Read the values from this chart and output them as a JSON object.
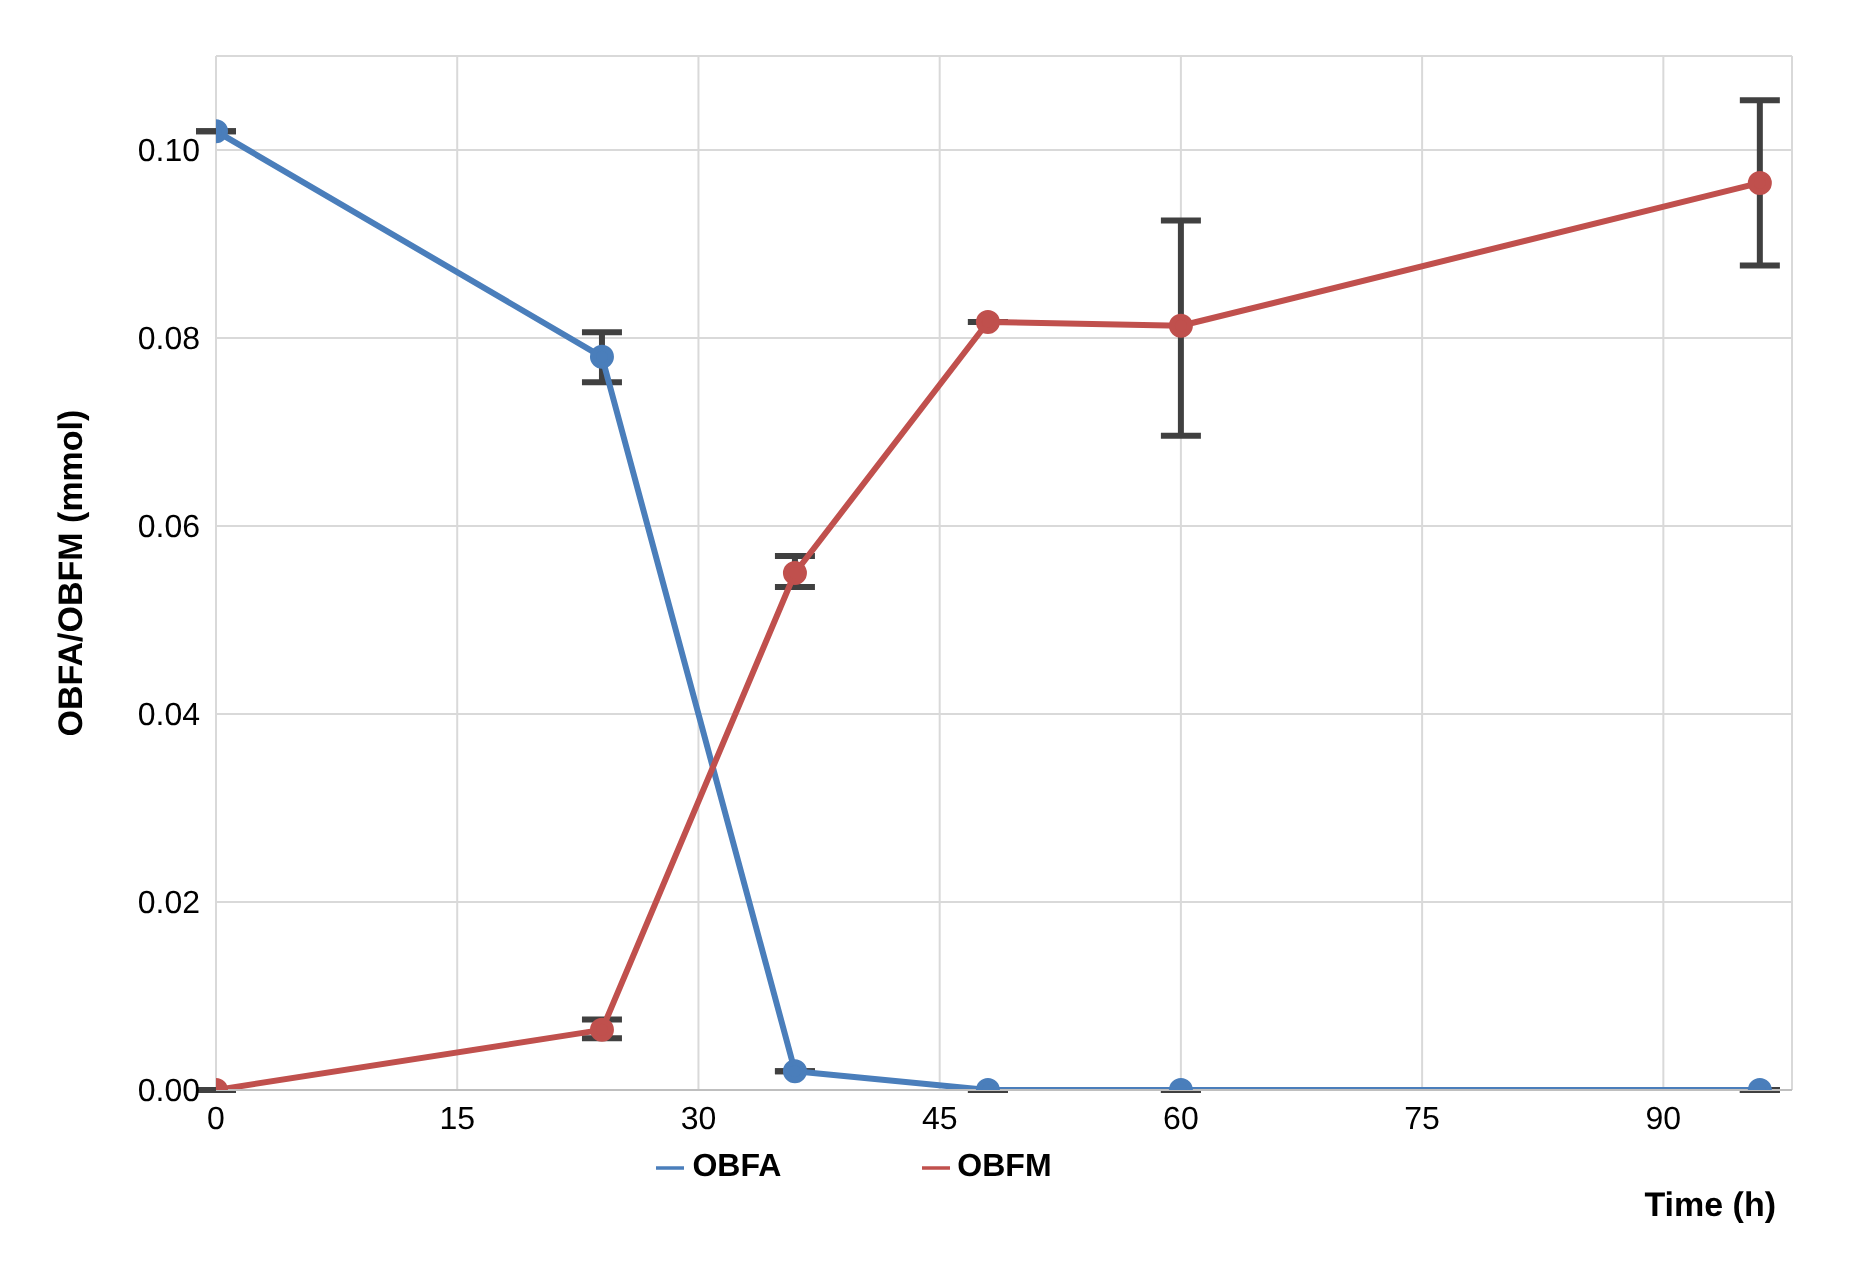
{
  "chart_data": {
    "type": "line",
    "xlabel": "Time (h)",
    "ylabel": "OBFA/OBFM (mmol)",
    "x": [
      0,
      24,
      36,
      48,
      60,
      96
    ],
    "series": [
      {
        "name": "OBFA",
        "color": "#4a7ebb",
        "values": [
          0.102,
          0.078,
          0.002,
          0,
          0,
          0
        ],
        "errors": [
          null,
          [
            0.0753,
            0.0806
          ],
          null,
          null,
          null,
          null
        ]
      },
      {
        "name": "OBFM",
        "color": "#c0504d",
        "values": [
          0,
          0.0064,
          0.055,
          0.0817,
          0.0813,
          0.0965
        ],
        "errors": [
          null,
          [
            0.0055,
            0.0075
          ],
          [
            0.0535,
            0.0568
          ],
          null,
          [
            0.0696,
            0.0925
          ],
          [
            0.0877,
            0.1053
          ]
        ]
      }
    ],
    "xlim": [
      0,
      98
    ],
    "xticks": [
      0,
      15,
      30,
      45,
      60,
      75,
      90
    ],
    "ylim": [
      0,
      0.11
    ],
    "yticks": [
      {
        "value": 0,
        "label": "0.00"
      },
      {
        "value": 0.02,
        "label": "0.02"
      },
      {
        "value": 0.04,
        "label": "0.04"
      },
      {
        "value": 0.06,
        "label": "0.06"
      },
      {
        "value": 0.08,
        "label": "0.08"
      },
      {
        "value": 0.1,
        "label": "0.10"
      }
    ],
    "grid": true,
    "legend": "bottom",
    "marker": "circle",
    "line_style": "solid"
  }
}
